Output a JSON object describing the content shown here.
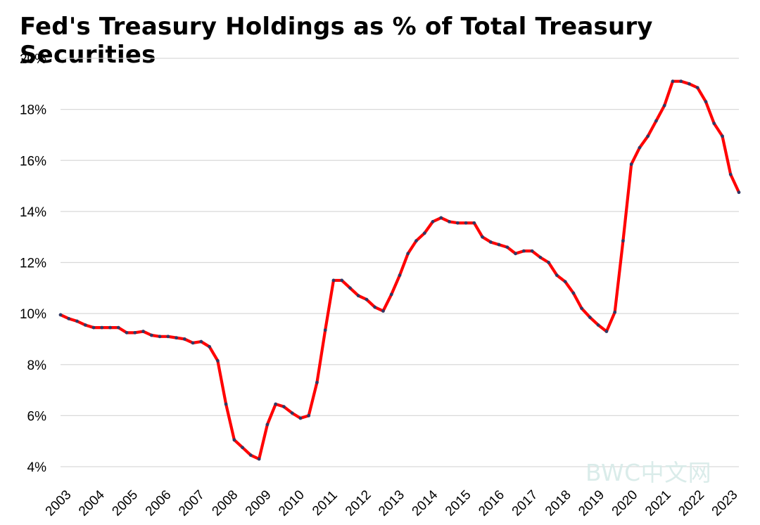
{
  "chart_data": {
    "type": "line",
    "title": "Fed's Treasury Holdings as % of Total Treasury Securities",
    "xlabel": "",
    "ylabel": "",
    "ylim": [
      4,
      20
    ],
    "yticks": [
      "4%",
      "6%",
      "8%",
      "10%",
      "12%",
      "14%",
      "16%",
      "18%",
      "20%"
    ],
    "xticks": [
      "2003",
      "2004",
      "2005",
      "2006",
      "2007",
      "2008",
      "2009",
      "2010",
      "2011",
      "2012",
      "2013",
      "2014",
      "2015",
      "2016",
      "2017",
      "2018",
      "2019",
      "2020",
      "2021",
      "2022",
      "2023"
    ],
    "grid": true,
    "legend": "none",
    "line_color": "#ff0000",
    "marker_color": "#2f3a66",
    "series": [
      {
        "values": [
          9.95,
          9.8,
          9.7,
          9.55,
          9.45,
          9.45,
          9.45,
          9.45,
          9.25,
          9.25,
          9.3,
          9.15,
          9.1,
          9.1,
          9.05,
          9.0,
          8.85,
          8.9,
          8.7,
          8.15,
          6.45,
          5.05,
          4.75,
          4.45,
          4.3,
          5.65,
          6.45,
          6.35,
          6.1,
          5.9,
          6.0,
          7.3,
          9.35,
          11.3,
          11.3,
          11.0,
          10.7,
          10.55,
          10.25,
          10.1,
          10.75,
          11.5,
          12.35,
          12.85,
          13.15,
          13.6,
          13.75,
          13.6,
          13.55,
          13.55,
          13.55,
          13.0,
          12.8,
          12.7,
          12.6,
          12.35,
          12.45,
          12.45,
          12.2,
          12.0,
          11.5,
          11.25,
          10.8,
          10.2,
          9.85,
          9.55,
          9.3,
          10.05,
          12.85,
          15.85,
          16.5,
          16.95,
          17.55,
          18.15,
          19.1,
          19.1,
          19.0,
          18.85,
          18.3,
          17.45,
          16.95,
          15.45,
          14.75
        ]
      }
    ]
  },
  "watermark": "BWC中文网"
}
